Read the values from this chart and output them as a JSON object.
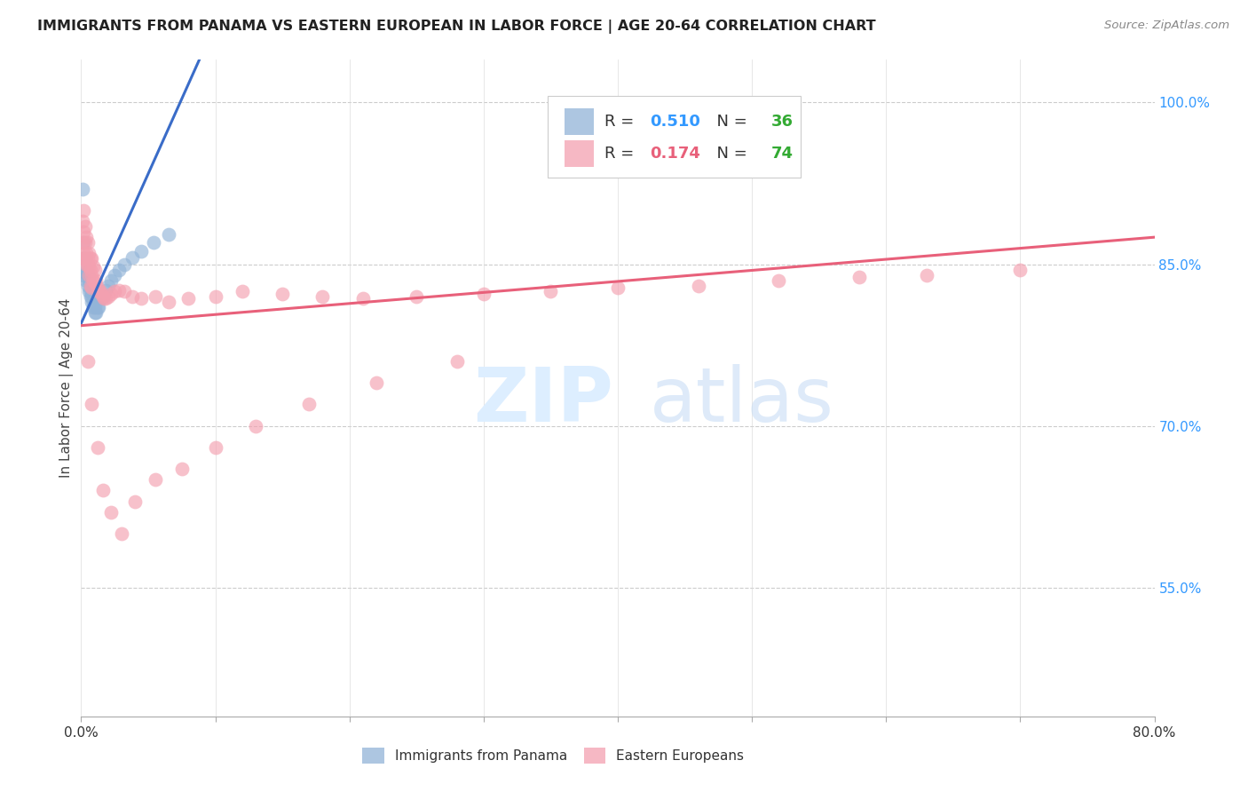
{
  "title": "IMMIGRANTS FROM PANAMA VS EASTERN EUROPEAN IN LABOR FORCE | AGE 20-64 CORRELATION CHART",
  "source": "Source: ZipAtlas.com",
  "ylabel": "In Labor Force | Age 20-64",
  "xlim": [
    0.0,
    0.8
  ],
  "ylim": [
    0.43,
    1.04
  ],
  "xtick_positions": [
    0.0,
    0.1,
    0.2,
    0.3,
    0.4,
    0.5,
    0.6,
    0.7,
    0.8
  ],
  "yticks_right": [
    0.55,
    0.7,
    0.85,
    1.0
  ],
  "ytick_labels_right": [
    "55.0%",
    "70.0%",
    "85.0%",
    "100.0%"
  ],
  "blue_R": "0.510",
  "blue_N": "36",
  "pink_R": "0.174",
  "pink_N": "74",
  "blue_color": "#92B4D8",
  "pink_color": "#F4A0B0",
  "blue_line_color": "#3A6CC8",
  "pink_line_color": "#E8607A",
  "legend_label_blue": "Immigrants from Panama",
  "legend_label_pink": "Eastern Europeans",
  "blue_trend_x0": 0.0,
  "blue_trend_y0": 0.795,
  "blue_trend_x1": 0.072,
  "blue_trend_y1": 0.995,
  "pink_trend_x0": 0.0,
  "pink_trend_y0": 0.793,
  "pink_trend_x1": 0.8,
  "pink_trend_y1": 0.875,
  "panama_x": [
    0.001,
    0.001,
    0.002,
    0.002,
    0.003,
    0.003,
    0.004,
    0.004,
    0.005,
    0.005,
    0.006,
    0.006,
    0.007,
    0.007,
    0.008,
    0.008,
    0.009,
    0.009,
    0.01,
    0.01,
    0.011,
    0.012,
    0.013,
    0.014,
    0.015,
    0.016,
    0.018,
    0.02,
    0.022,
    0.025,
    0.028,
    0.032,
    0.038,
    0.045,
    0.054,
    0.065
  ],
  "panama_y": [
    0.92,
    0.855,
    0.87,
    0.84,
    0.855,
    0.842,
    0.845,
    0.835,
    0.84,
    0.83,
    0.835,
    0.825,
    0.825,
    0.82,
    0.82,
    0.815,
    0.815,
    0.81,
    0.81,
    0.805,
    0.805,
    0.81,
    0.81,
    0.818,
    0.818,
    0.82,
    0.826,
    0.83,
    0.835,
    0.84,
    0.845,
    0.85,
    0.856,
    0.862,
    0.87,
    0.878
  ],
  "eastern_x": [
    0.001,
    0.001,
    0.001,
    0.002,
    0.002,
    0.002,
    0.003,
    0.003,
    0.003,
    0.004,
    0.004,
    0.004,
    0.005,
    0.005,
    0.005,
    0.006,
    0.006,
    0.006,
    0.007,
    0.007,
    0.007,
    0.008,
    0.008,
    0.008,
    0.009,
    0.009,
    0.01,
    0.01,
    0.011,
    0.012,
    0.013,
    0.014,
    0.015,
    0.016,
    0.017,
    0.018,
    0.02,
    0.022,
    0.025,
    0.028,
    0.032,
    0.038,
    0.045,
    0.055,
    0.065,
    0.08,
    0.1,
    0.12,
    0.15,
    0.18,
    0.21,
    0.25,
    0.3,
    0.35,
    0.4,
    0.46,
    0.52,
    0.58,
    0.63,
    0.7,
    0.005,
    0.008,
    0.012,
    0.016,
    0.022,
    0.03,
    0.04,
    0.055,
    0.075,
    0.1,
    0.13,
    0.17,
    0.22,
    0.28
  ],
  "eastern_y": [
    0.855,
    0.87,
    0.89,
    0.86,
    0.88,
    0.9,
    0.855,
    0.87,
    0.885,
    0.86,
    0.875,
    0.85,
    0.855,
    0.87,
    0.85,
    0.848,
    0.86,
    0.84,
    0.845,
    0.855,
    0.83,
    0.84,
    0.855,
    0.828,
    0.835,
    0.848,
    0.832,
    0.845,
    0.835,
    0.828,
    0.825,
    0.825,
    0.822,
    0.82,
    0.818,
    0.818,
    0.82,
    0.822,
    0.825,
    0.826,
    0.825,
    0.82,
    0.818,
    0.82,
    0.815,
    0.818,
    0.82,
    0.825,
    0.822,
    0.82,
    0.818,
    0.82,
    0.822,
    0.825,
    0.828,
    0.83,
    0.835,
    0.838,
    0.84,
    0.845,
    0.76,
    0.72,
    0.68,
    0.64,
    0.62,
    0.6,
    0.63,
    0.65,
    0.66,
    0.68,
    0.7,
    0.72,
    0.74,
    0.76
  ]
}
